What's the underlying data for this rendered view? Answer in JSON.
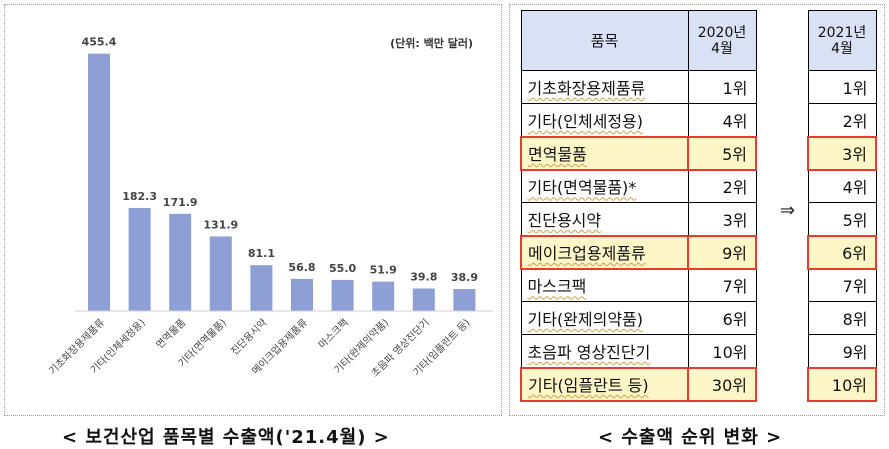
{
  "chart_data": {
    "type": "bar",
    "unit_note": "(단위: 백만 달러)",
    "categories": [
      "기초화장용제품류",
      "기타(인체세정용)",
      "면역물품",
      "기타(면역물품)",
      "진단용시약",
      "메이크업용제품류",
      "마스크팩",
      "기타(완제의약품)",
      "초음파 영상진단기",
      "기타(임플란트 등)"
    ],
    "values": [
      455.4,
      182.3,
      171.9,
      131.9,
      81.1,
      56.8,
      55.0,
      51.9,
      39.8,
      38.9
    ],
    "value_labels": [
      "455.4",
      "182.3",
      "171.9",
      "131.9",
      "81.1",
      "56.8",
      "55.0",
      "51.9",
      "39.8",
      "38.9"
    ],
    "ylim": [
      0,
      460
    ],
    "bar_color": "#8e9fd6",
    "grid": false
  },
  "captions": {
    "left": "< 보건산업 품목별 수출액('21.4월) >",
    "right": "< 수출액 순위 변화 >"
  },
  "rank_table": {
    "header_item": "품목",
    "header_2020": "2020년\n4월",
    "header_2021": "2021년\n4월",
    "arrow": "⇒",
    "highlight_color": "#e63b2e",
    "rows": [
      {
        "item": "기초화장용제품류",
        "r2020": "1위",
        "r2021": "1위",
        "hl": false
      },
      {
        "item": "기타(인체세정용)",
        "r2020": "4위",
        "r2021": "2위",
        "hl": false
      },
      {
        "item": "면역물품",
        "r2020": "5위",
        "r2021": "3위",
        "hl": true
      },
      {
        "item": "기타(면역물품)*",
        "r2020": "2위",
        "r2021": "4위",
        "hl": false
      },
      {
        "item": "진단용시약",
        "r2020": "3위",
        "r2021": "5위",
        "hl": false
      },
      {
        "item": "메이크업용제품류",
        "r2020": "9위",
        "r2021": "6위",
        "hl": true
      },
      {
        "item": "마스크팩",
        "r2020": "7위",
        "r2021": "7위",
        "hl": false
      },
      {
        "item": "기타(완제의약품)",
        "r2020": "6위",
        "r2021": "8위",
        "hl": false
      },
      {
        "item": "초음파 영상진단기",
        "r2020": "10위",
        "r2021": "9위",
        "hl": false
      },
      {
        "item": "기타(임플란트 등)",
        "r2020": "30위",
        "r2021": "10위",
        "hl": true
      }
    ]
  }
}
